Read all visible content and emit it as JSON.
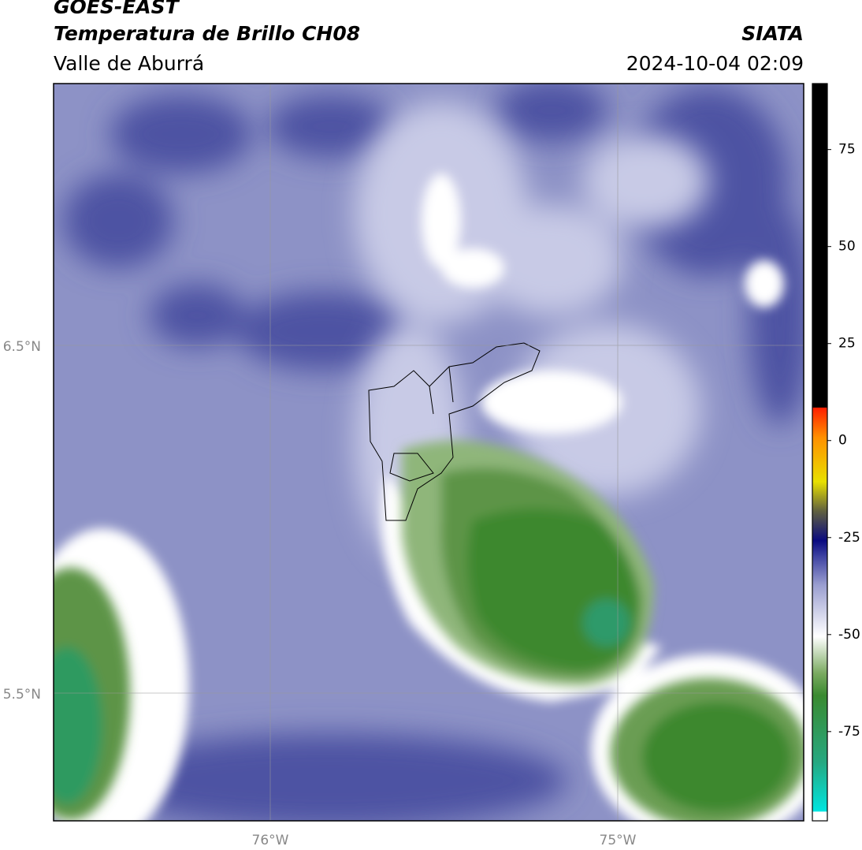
{
  "header": {
    "title": "GOES-EAST",
    "subtitle": "Temperatura de Brillo CH08",
    "region": "Valle de Aburrá",
    "source": "SIATA",
    "timestamp": "2024-10-04 02:09"
  },
  "map": {
    "lat_labels": [
      "6.5°N",
      "5.5°N"
    ],
    "lon_labels": [
      "76°W",
      "75°W"
    ]
  },
  "colorbar": {
    "lim": [
      -98,
      92
    ],
    "ticks": [
      75,
      50,
      25,
      0,
      -25,
      -50,
      -75
    ]
  }
}
